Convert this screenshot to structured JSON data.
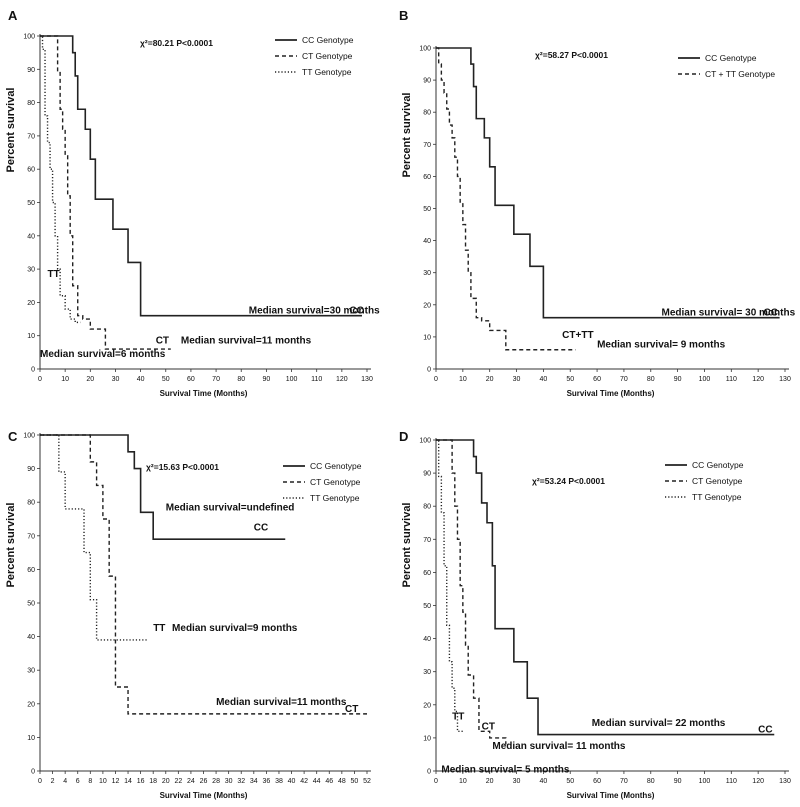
{
  "chart_data": [
    {
      "type": "line",
      "panel": "A",
      "xlabel": "Survival Time (Months)",
      "ylabel": "Percent survival",
      "xlim": [
        0,
        130
      ],
      "ylim": [
        0,
        100
      ],
      "xticks": [
        "0",
        "10",
        "20",
        "30",
        "40",
        "50",
        "60",
        "70",
        "80",
        "90",
        "100",
        "110",
        "120",
        "130"
      ],
      "yticks": [
        "0",
        "10",
        "20",
        "30",
        "40",
        "50",
        "60",
        "70",
        "80",
        "90",
        "100"
      ],
      "grid": false,
      "legend_position": "top-right",
      "stat": "χ²=80.21 P<0.0001",
      "series": [
        {
          "name": "CC Genotype",
          "style": "solid",
          "x": [
            0,
            12,
            13,
            14,
            15,
            16,
            18,
            20,
            22,
            29,
            35,
            40,
            128
          ],
          "y": [
            100,
            100,
            95,
            88,
            78,
            78,
            72,
            63,
            51,
            42,
            32,
            16,
            16
          ]
        },
        {
          "name": "CT Genotype",
          "style": "dashed",
          "x": [
            0,
            6,
            7,
            8,
            9,
            10,
            11,
            12,
            13,
            15,
            17,
            20,
            26,
            52
          ],
          "y": [
            100,
            100,
            89,
            78,
            72,
            64,
            52,
            40,
            25,
            16,
            15,
            12,
            6,
            6
          ]
        },
        {
          "name": "TT Genotype",
          "style": "dotted",
          "x": [
            0,
            1,
            2,
            3,
            4,
            5,
            6,
            7,
            8,
            10,
            12,
            14,
            16
          ],
          "y": [
            100,
            96,
            76,
            68,
            60,
            50,
            40,
            30,
            22,
            18,
            15,
            14,
            14
          ]
        }
      ],
      "annotations": [
        {
          "text": "Median survival=30 months",
          "x": 83,
          "y": 16
        },
        {
          "text": "CC",
          "x": 123,
          "y": 16
        },
        {
          "text": "CT",
          "x": 46,
          "y": 7
        },
        {
          "text": "Median survival=11 months",
          "x": 56,
          "y": 7
        },
        {
          "text": "TT",
          "x": 3,
          "y": 27
        },
        {
          "text": "Median survival=6 months",
          "x": 0,
          "y": 3
        }
      ]
    },
    {
      "type": "line",
      "panel": "B",
      "xlabel": "Survival Time (Months)",
      "ylabel": "Percent survival",
      "xlim": [
        0,
        130
      ],
      "ylim": [
        0,
        100
      ],
      "xticks": [
        "0",
        "10",
        "20",
        "30",
        "40",
        "50",
        "60",
        "70",
        "80",
        "90",
        "100",
        "110",
        "120",
        "130"
      ],
      "yticks": [
        "0",
        "10",
        "20",
        "30",
        "40",
        "50",
        "60",
        "70",
        "80",
        "90",
        "100"
      ],
      "grid": false,
      "legend_position": "top-right",
      "stat": "χ²=58.27 P<0.0001",
      "series": [
        {
          "name": "CC Genotype",
          "style": "solid",
          "x": [
            0,
            12,
            13,
            14,
            15,
            16,
            18,
            20,
            22,
            29,
            35,
            40,
            128
          ],
          "y": [
            100,
            100,
            95,
            88,
            78,
            78,
            72,
            63,
            51,
            42,
            32,
            16,
            16
          ]
        },
        {
          "name": "CT + TT Genotype",
          "style": "dashed",
          "x": [
            0,
            1,
            2,
            3,
            4,
            5,
            6,
            7,
            8,
            9,
            10,
            11,
            12,
            13,
            15,
            17,
            20,
            26,
            52
          ],
          "y": [
            100,
            95,
            90,
            86,
            81,
            76,
            72,
            66,
            60,
            52,
            45,
            37,
            30,
            22,
            16,
            15,
            12,
            6,
            6
          ]
        }
      ],
      "annotations": [
        {
          "text": "Median survival= 30 months",
          "x": 84,
          "y": 16
        },
        {
          "text": "CC",
          "x": 122,
          "y": 16
        },
        {
          "text": "CT+TT",
          "x": 47,
          "y": 9
        },
        {
          "text": "Median survival= 9 months",
          "x": 60,
          "y": 6
        }
      ]
    },
    {
      "type": "line",
      "panel": "C",
      "xlabel": "Survival Time (Months)",
      "ylabel": "Percent survival",
      "xlim": [
        0,
        52
      ],
      "ylim": [
        0,
        100
      ],
      "xticks": [
        "0",
        "2",
        "4",
        "6",
        "8",
        "10",
        "12",
        "14",
        "16",
        "18",
        "20",
        "22",
        "24",
        "26",
        "28",
        "30",
        "32",
        "34",
        "36",
        "38",
        "40",
        "42",
        "44",
        "46",
        "48",
        "50",
        "52"
      ],
      "yticks": [
        "0",
        "10",
        "20",
        "30",
        "40",
        "50",
        "60",
        "70",
        "80",
        "90",
        "100"
      ],
      "grid": false,
      "legend_position": "top-right",
      "stat": "χ²=15.63  P<0.0001",
      "series": [
        {
          "name": "CC Genotype",
          "style": "solid",
          "x": [
            0,
            13,
            14,
            15,
            16,
            18,
            39
          ],
          "y": [
            100,
            100,
            95,
            90,
            77,
            69,
            69
          ]
        },
        {
          "name": "CT Genotype",
          "style": "dashed",
          "x": [
            0,
            7,
            8,
            9,
            10,
            11,
            12,
            14,
            52
          ],
          "y": [
            100,
            100,
            92,
            85,
            75,
            58,
            25,
            17,
            17
          ]
        },
        {
          "name": "TT Genotype",
          "style": "dotted",
          "x": [
            0,
            2,
            3,
            4,
            7,
            8,
            9,
            17
          ],
          "y": [
            100,
            100,
            89,
            78,
            65,
            51,
            39,
            39
          ]
        }
      ],
      "annotations": [
        {
          "text": "Median survival=undefined",
          "x": 20,
          "y": 77
        },
        {
          "text": "CC",
          "x": 34,
          "y": 71
        },
        {
          "text": "TT",
          "x": 18,
          "y": 41
        },
        {
          "text": "Median survival=9 months",
          "x": 21,
          "y": 41
        },
        {
          "text": "Median survival=11 months",
          "x": 28,
          "y": 19
        },
        {
          "text": "CT",
          "x": 48.5,
          "y": 17
        }
      ]
    },
    {
      "type": "line",
      "panel": "D",
      "xlabel": "Survival Time (Months)",
      "ylabel": "Percent survival",
      "xlim": [
        0,
        130
      ],
      "ylim": [
        0,
        100
      ],
      "xticks": [
        "0",
        "10",
        "20",
        "30",
        "40",
        "50",
        "60",
        "70",
        "80",
        "90",
        "100",
        "110",
        "120",
        "130"
      ],
      "yticks": [
        "0",
        "10",
        "20",
        "30",
        "40",
        "50",
        "60",
        "70",
        "80",
        "90",
        "100"
      ],
      "grid": false,
      "legend_position": "top-right",
      "stat": "χ²=53.24  P<0.0001",
      "series": [
        {
          "name": "CC Genotype",
          "style": "solid",
          "x": [
            0,
            13,
            14,
            15,
            17,
            19,
            21,
            22,
            25,
            29,
            34,
            38,
            126
          ],
          "y": [
            100,
            100,
            95,
            90,
            81,
            75,
            62,
            43,
            43,
            33,
            22,
            11,
            11
          ]
        },
        {
          "name": "CT Genotype",
          "style": "dashed",
          "x": [
            0,
            5,
            6,
            7,
            8,
            9,
            10,
            11,
            12,
            14,
            16,
            20,
            26
          ],
          "y": [
            100,
            100,
            90,
            80,
            70,
            56,
            48,
            38,
            29,
            22,
            12,
            10,
            8
          ]
        },
        {
          "name": "TT Genotype",
          "style": "dotted",
          "x": [
            0,
            1,
            2,
            3,
            4,
            5,
            6,
            7,
            8,
            10
          ],
          "y": [
            100,
            89,
            78,
            62,
            44,
            33,
            25,
            18,
            12,
            12
          ]
        }
      ],
      "annotations": [
        {
          "text": "Median survival= 22 months",
          "x": 58,
          "y": 13
        },
        {
          "text": "CC",
          "x": 120,
          "y": 11
        },
        {
          "text": "TT",
          "x": 6,
          "y": 15
        },
        {
          "text": "CT",
          "x": 17,
          "y": 12
        },
        {
          "text": "Median survival= 11 months",
          "x": 21,
          "y": 6
        },
        {
          "text": "Median survival= 5 months",
          "x": 2,
          "y": -1
        }
      ]
    }
  ]
}
